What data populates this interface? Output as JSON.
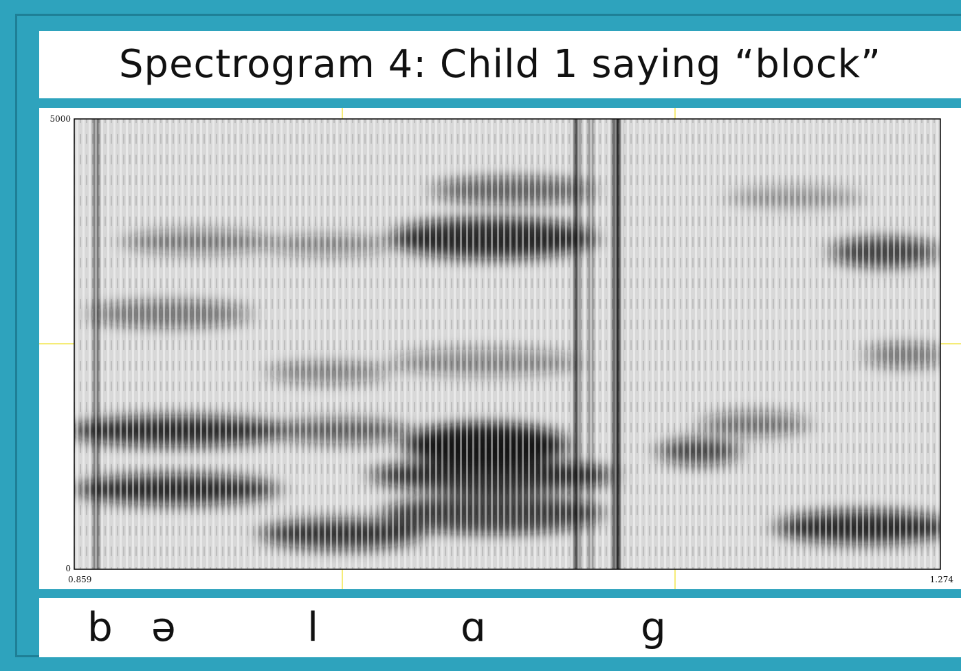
{
  "title": "Spectrogram 4: Child 1 saying “block”",
  "spectrogram": {
    "y_labels": [
      "5000",
      "0"
    ],
    "x_labels": [
      "0.859",
      "1.274"
    ]
  },
  "transcription": [
    "b",
    "ə",
    "l",
    "ɑ",
    "g"
  ]
}
